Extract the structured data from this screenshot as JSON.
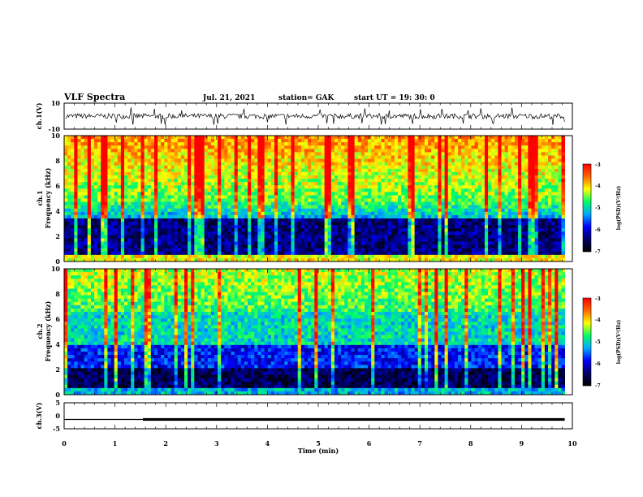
{
  "header": {
    "title": "VLF Spectra",
    "date": "Jul. 21, 2021",
    "station": "station= GAK",
    "start": "start  UT =  19: 30: 0"
  },
  "chart_data": [
    {
      "type": "line",
      "name": "ch1-waveform",
      "ylabel": "ch.1(V)",
      "ylim": [
        -10,
        10
      ],
      "y_ticks": [
        "10",
        "-10"
      ],
      "xlim": [
        0,
        10
      ],
      "x_end": 9.85,
      "baseline": 0,
      "noise_amplitude": 2,
      "spike_amplitude": 7
    },
    {
      "type": "heatmap",
      "name": "ch1-spectrogram",
      "ylabel": "ch.1",
      "ylabel2": "Frequency (kHz)",
      "ylim": [
        0,
        10
      ],
      "y_ticks": [
        "0",
        "2",
        "4",
        "6",
        "8",
        "10"
      ],
      "xlim": [
        0,
        10
      ],
      "x_end": 9.85,
      "colorbar": {
        "label": "log(PSD)(V²/Hz)",
        "range": [
          -7,
          -3
        ],
        "ticks": [
          "-3",
          "-4",
          "-5",
          "-6",
          "-7"
        ]
      }
    },
    {
      "type": "heatmap",
      "name": "ch2-spectrogram",
      "ylabel": "ch.2",
      "ylabel2": "Frequency (kHz)",
      "ylim": [
        0,
        10
      ],
      "y_ticks": [
        "0",
        "2",
        "4",
        "6",
        "8",
        "10"
      ],
      "xlim": [
        0,
        10
      ],
      "x_end": 9.85,
      "colorbar": {
        "label": "log(PSD)(V²/Hz)",
        "range": [
          -7,
          -3
        ],
        "ticks": [
          "-3",
          "-4",
          "-5",
          "-6",
          "-7"
        ]
      }
    },
    {
      "type": "line",
      "name": "ch3-signal",
      "ylabel": "ch.3(V)",
      "ylim": [
        -5,
        5
      ],
      "y_ticks": [
        "5",
        "0",
        "-5"
      ],
      "xlim": [
        0,
        10
      ],
      "x_end": 9.85,
      "x": [
        0,
        1.55,
        1.55,
        9.85
      ],
      "y": [
        -1.4,
        -1.4,
        -1.4,
        -1.4
      ],
      "thick_from": 1.55
    }
  ],
  "xaxis": {
    "label": "Time (min)",
    "ticks": [
      "0",
      "1",
      "2",
      "3",
      "4",
      "5",
      "6",
      "7",
      "8",
      "9",
      "10"
    ]
  },
  "colors": {
    "colormap": [
      "#000000",
      "#000066",
      "#0000ff",
      "#00aaff",
      "#00ff66",
      "#ffff00",
      "#ff6600",
      "#ff0000"
    ]
  }
}
